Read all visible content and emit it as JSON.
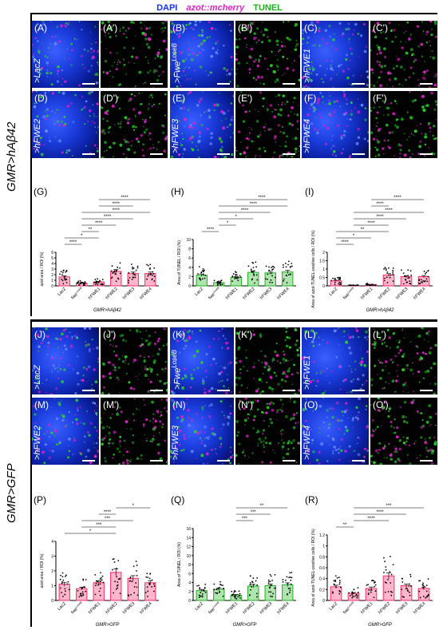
{
  "legend": {
    "dapi": "DAPI",
    "azot": "azot::mcherry",
    "tunel": "TUNEL"
  },
  "colors": {
    "dapi": "#1530ff",
    "azot": "#e020c8",
    "tunel": "#19b219",
    "bar_pink": "#ff2a6a",
    "bar_green": "#19b219"
  },
  "sections": [
    {
      "side_label": "GMR>hAβ42"
    },
    {
      "side_label": "GMR>GFP"
    }
  ],
  "image_panels": {
    "top": [
      {
        "label": "(A)",
        "label2": "(A')",
        "genotype": ">LacZ"
      },
      {
        "label": "(B)",
        "label2": "(B')",
        "genotype": ">Fwe",
        "sup": "LoseB"
      },
      {
        "label": "(C)",
        "label2": "(C')",
        "genotype": ">hFWE1"
      },
      {
        "label": "(D)",
        "label2": "(D')",
        "genotype": ">hFWE2"
      },
      {
        "label": "(E)",
        "label2": "(E')",
        "genotype": ">hFWE3"
      },
      {
        "label": "(F)",
        "label2": "(F')",
        "genotype": ">hFWE4"
      }
    ],
    "bottom": [
      {
        "label": "(J)",
        "label2": "(J')",
        "genotype": ">LacZ"
      },
      {
        "label": "(K)",
        "label2": "(K')",
        "genotype": ">Fwe",
        "sup": "LoseB"
      },
      {
        "label": "(L)",
        "label2": "(L')",
        "genotype": ">hFWE1"
      },
      {
        "label": "(M)",
        "label2": "(M')",
        "genotype": ">hFWE2"
      },
      {
        "label": "(N)",
        "label2": "(N')",
        "genotype": ">hFWE3"
      },
      {
        "label": "(O)",
        "label2": "(O')",
        "genotype": ">hFWE4"
      }
    ]
  },
  "chart_data": [
    {
      "id": "G",
      "panel_label": "(G)",
      "type": "bar",
      "color": "pink",
      "categories": [
        "LacZ",
        "fwe^LoseB",
        "hFWE1",
        "hFWE2",
        "hFWE3",
        "hFWE4"
      ],
      "values": [
        1.6,
        0.5,
        0.7,
        2.6,
        2.2,
        2.2
      ],
      "ylabel": "azot area / ROI (%)",
      "xlabel": "GMR>hAβ42",
      "ylim": [
        0,
        6
      ],
      "yticks": [
        0,
        1,
        2,
        3,
        4,
        5,
        6
      ],
      "sig": [
        {
          "from": 0,
          "to": 1,
          "label": "****"
        },
        {
          "from": 0,
          "to": 2,
          "label": "*"
        },
        {
          "from": 1,
          "to": 2,
          "label": "**"
        },
        {
          "from": 1,
          "to": 3,
          "label": "****"
        },
        {
          "from": 1,
          "to": 4,
          "label": "****"
        },
        {
          "from": 1,
          "to": 5,
          "label": "****"
        },
        {
          "from": 2,
          "to": 4,
          "label": "****"
        },
        {
          "from": 2,
          "to": 5,
          "label": "****"
        }
      ]
    },
    {
      "id": "H",
      "panel_label": "(H)",
      "type": "bar",
      "color": "green",
      "categories": [
        "LacZ",
        "fwe^LoseB",
        "hFWE1",
        "hFWE2",
        "hFWE3",
        "hFWE4"
      ],
      "values": [
        2.3,
        0.7,
        1.8,
        2.9,
        2.8,
        3.0
      ],
      "ylabel": "Area of TUNEL / ROI (%)",
      "xlabel": "",
      "ylim": [
        0,
        10
      ],
      "yticks": [
        0,
        2,
        4,
        6,
        8,
        10
      ],
      "sig": [
        {
          "from": 0,
          "to": 1,
          "label": "****"
        },
        {
          "from": 1,
          "to": 2,
          "label": "*"
        },
        {
          "from": 1,
          "to": 3,
          "label": "*"
        },
        {
          "from": 1,
          "to": 4,
          "label": "****"
        },
        {
          "from": 1,
          "to": 5,
          "label": "****"
        },
        {
          "from": 2,
          "to": 5,
          "label": "****"
        }
      ]
    },
    {
      "id": "I",
      "panel_label": "(I)",
      "type": "bar",
      "color": "pink",
      "categories": [
        "LacZ",
        "fwe^LoseB",
        "hFWE1",
        "hFWE2",
        "hFWE3",
        "hFWE4"
      ],
      "values": [
        0.3,
        0.03,
        0.08,
        0.65,
        0.55,
        0.55
      ],
      "ylabel": "Area of azot-TUNEL-positive cells / ROI (%)",
      "xlabel": "GMR>hAβ42",
      "ylim": [
        0,
        2.0
      ],
      "yticks": [
        0.0,
        0.5,
        1.0,
        1.5,
        2.0
      ],
      "sig": [
        {
          "from": 0,
          "to": 1,
          "label": "****"
        },
        {
          "from": 0,
          "to": 2,
          "label": "*"
        },
        {
          "from": 0,
          "to": 3,
          "label": "**"
        },
        {
          "from": 1,
          "to": 3,
          "label": "****"
        },
        {
          "from": 1,
          "to": 4,
          "label": "****"
        },
        {
          "from": 1,
          "to": 5,
          "label": "****"
        },
        {
          "from": 2,
          "to": 3,
          "label": "****"
        },
        {
          "from": 2,
          "to": 5,
          "label": "****"
        }
      ]
    },
    {
      "id": "P",
      "panel_label": "(P)",
      "type": "bar",
      "color": "pink",
      "categories": [
        "LacZ",
        "fwe^LoseB",
        "hFWE1",
        "hFWE2",
        "hFWE3",
        "hFWE4"
      ],
      "values": [
        1.1,
        0.8,
        1.2,
        1.9,
        1.5,
        1.2
      ],
      "ylabel": "azot area / ROI (%)",
      "xlabel": "GMR>GFP",
      "ylim": [
        0,
        4
      ],
      "yticks": [
        0,
        1,
        2,
        3,
        4
      ],
      "sig": [
        {
          "from": 0,
          "to": 3,
          "label": "*"
        },
        {
          "from": 1,
          "to": 3,
          "label": "***"
        },
        {
          "from": 1,
          "to": 4,
          "label": "***"
        },
        {
          "from": 2,
          "to": 3,
          "label": "****"
        },
        {
          "from": 3,
          "to": 5,
          "label": "*"
        }
      ]
    },
    {
      "id": "Q",
      "panel_label": "(Q)",
      "type": "bar",
      "color": "green",
      "categories": [
        "LacZ",
        "fwe^LoseB",
        "hFWE1",
        "hFWE2",
        "hFWE3",
        "hFWE4"
      ],
      "values": [
        2.2,
        2.5,
        1.2,
        3.2,
        3.3,
        3.5
      ],
      "ylabel": "Area of TUNEL / ROI (%)",
      "xlabel": "GMR>GFP",
      "ylim": [
        0,
        16
      ],
      "yticks": [
        0,
        2,
        4,
        6,
        8,
        10,
        12,
        14,
        16
      ],
      "sig": [
        {
          "from": 2,
          "to": 3,
          "label": "***"
        },
        {
          "from": 2,
          "to": 4,
          "label": "***"
        },
        {
          "from": 2,
          "to": 5,
          "label": "**"
        }
      ]
    },
    {
      "id": "R",
      "panel_label": "(R)",
      "type": "bar",
      "color": "pink",
      "categories": [
        "LacZ",
        "fwe^LoseB",
        "hFWE1",
        "hFWE2",
        "hFWE3",
        "hFWE4"
      ],
      "values": [
        0.25,
        0.13,
        0.22,
        0.45,
        0.27,
        0.22
      ],
      "ylabel": "Area of azot-TUNEL-positive cells / ROI (%)",
      "xlabel": "GMR>GFP",
      "ylim": [
        0,
        1.2
      ],
      "yticks": [
        0.0,
        0.2,
        0.4,
        0.6,
        0.8,
        1.0,
        1.2
      ],
      "sig": [
        {
          "from": 0,
          "to": 1,
          "label": "**"
        },
        {
          "from": 1,
          "to": 3,
          "label": "****"
        },
        {
          "from": 1,
          "to": 4,
          "label": "****"
        },
        {
          "from": 1,
          "to": 5,
          "label": "***"
        }
      ]
    }
  ]
}
